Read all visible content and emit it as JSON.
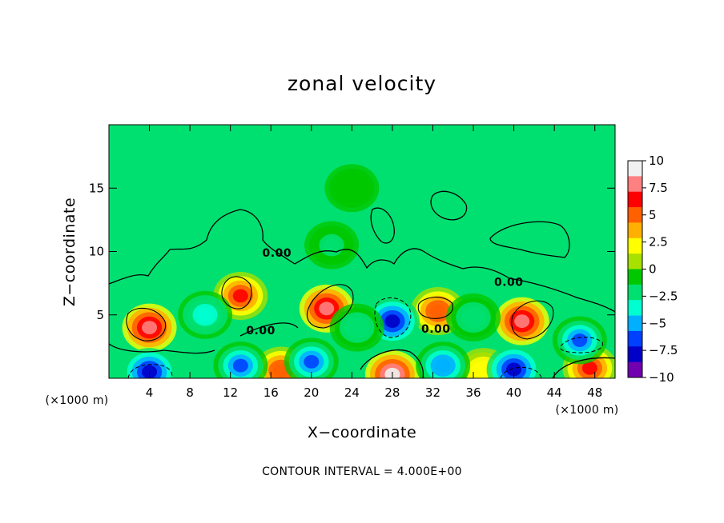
{
  "chart_data": {
    "type": "heatmap",
    "title": "zonal velocity",
    "xlabel": "X−coordinate",
    "ylabel": "Z−coordinate",
    "x_unit_left": "(×1000 m)",
    "x_unit_right": "(×1000 m)",
    "footer": "CONTOUR INTERVAL = 4.000E+00",
    "xlim": [
      0,
      50
    ],
    "ylim": [
      0,
      20
    ],
    "xticks": [
      4,
      8,
      12,
      16,
      20,
      24,
      28,
      32,
      36,
      40,
      44,
      48
    ],
    "yticks": [
      5,
      10,
      15
    ],
    "contour_interval": 4.0,
    "contour_labels": [
      {
        "text": "0.00",
        "x": 16.6,
        "y": 9.9
      },
      {
        "text": "0.00",
        "x": 39.5,
        "y": 7.6
      },
      {
        "text": "0.00",
        "x": 15.0,
        "y": 3.8
      },
      {
        "text": "0.00",
        "x": 32.3,
        "y": 3.9
      }
    ],
    "colorbar": {
      "min": -10,
      "max": 10,
      "ticks": [
        "10",
        "7.5",
        "5",
        "2.5",
        "0",
        "−2.5",
        "−5",
        "−7.5",
        "−10"
      ],
      "colors": [
        "#f0f0f0",
        "#ff8080",
        "#ff0000",
        "#ff6000",
        "#ffb000",
        "#ffff00",
        "#a8e000",
        "#00c800",
        "#00e070",
        "#00ffd0",
        "#00b0ff",
        "#0040ff",
        "#0000c8",
        "#7000b0"
      ]
    },
    "features": [
      {
        "sign": "positive",
        "x": 4.0,
        "z": 4.0,
        "peak": 8.0
      },
      {
        "sign": "positive",
        "x": 13.0,
        "z": 6.5,
        "peak": 7.0
      },
      {
        "sign": "positive",
        "x": 21.5,
        "z": 5.5,
        "peak": 9.0
      },
      {
        "sign": "positive",
        "x": 32.5,
        "z": 5.3,
        "peak": 6.0
      },
      {
        "sign": "positive",
        "x": 40.8,
        "z": 4.5,
        "peak": 9.0
      },
      {
        "sign": "positive",
        "x": 28.0,
        "z": 0.3,
        "peak": 10.0
      },
      {
        "sign": "positive",
        "x": 17.0,
        "z": 0.6,
        "peak": 6.0
      },
      {
        "sign": "positive",
        "x": 47.5,
        "z": 0.8,
        "peak": 7.0
      },
      {
        "sign": "positive",
        "x": 37.0,
        "z": 0.5,
        "peak": 3.0
      },
      {
        "sign": "negative",
        "x": 28.0,
        "z": 4.5,
        "peak": -8.0
      },
      {
        "sign": "negative",
        "x": 4.0,
        "z": 0.5,
        "peak": -8.0
      },
      {
        "sign": "negative",
        "x": 9.5,
        "z": 5.0,
        "peak": -4.0
      },
      {
        "sign": "negative",
        "x": 20.0,
        "z": 1.3,
        "peak": -7.0
      },
      {
        "sign": "negative",
        "x": 13.0,
        "z": 1.0,
        "peak": -7.0
      },
      {
        "sign": "negative",
        "x": 33.0,
        "z": 1.0,
        "peak": -6.0
      },
      {
        "sign": "negative",
        "x": 40.0,
        "z": 0.7,
        "peak": -9.0
      },
      {
        "sign": "negative",
        "x": 46.5,
        "z": 3.0,
        "peak": -7.0
      },
      {
        "sign": "negative",
        "x": 36.0,
        "z": 4.8,
        "peak": -3.0
      },
      {
        "sign": "negative",
        "x": 24.5,
        "z": 4.0,
        "peak": -3.0
      },
      {
        "sign": "negative",
        "x": 24.0,
        "z": 15.0,
        "peak": -1.5
      },
      {
        "sign": "negative",
        "x": 22.0,
        "z": 10.5,
        "peak": -2.0
      }
    ],
    "grid": false,
    "legend": "colorbar right"
  }
}
